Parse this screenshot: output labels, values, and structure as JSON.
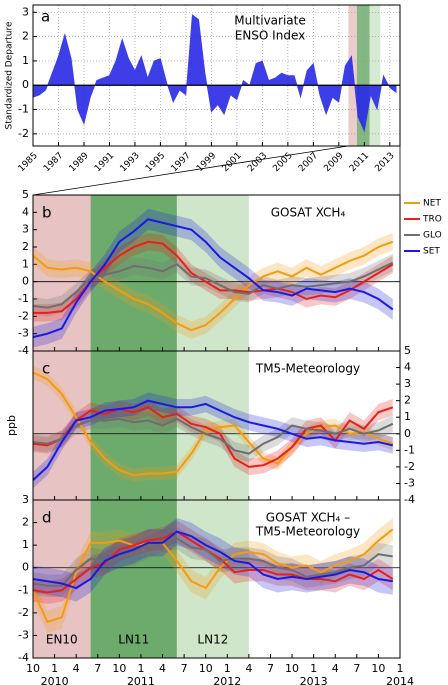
{
  "chart_data": [
    {
      "type": "area",
      "panel": "a",
      "title": [
        "Multivariate",
        "ENSO Index"
      ],
      "ylabel": "Standardized Departure",
      "x": [
        1985.0,
        1985.5,
        1986.0,
        1986.5,
        1987.0,
        1987.5,
        1988.0,
        1988.5,
        1989.0,
        1989.5,
        1990.0,
        1990.5,
        1991.0,
        1991.5,
        1992.0,
        1992.5,
        1993.0,
        1993.5,
        1994.0,
        1994.5,
        1995.0,
        1995.5,
        1996.0,
        1996.5,
        1997.0,
        1997.5,
        1998.0,
        1998.5,
        1999.0,
        1999.5,
        2000.0,
        2000.5,
        2001.0,
        2001.5,
        2002.0,
        2002.5,
        2003.0,
        2003.5,
        2004.0,
        2004.5,
        2005.0,
        2005.5,
        2006.0,
        2006.5,
        2007.0,
        2007.5,
        2008.0,
        2008.5,
        2009.0,
        2009.5,
        2010.0,
        2010.5,
        2011.0,
        2011.5,
        2012.0,
        2012.5,
        2013.0,
        2013.5
      ],
      "values": [
        -0.5,
        -0.4,
        -0.2,
        0.5,
        1.2,
        2.1,
        1.1,
        -1.0,
        -1.6,
        -0.5,
        0.2,
        0.3,
        0.4,
        1.0,
        1.9,
        1.1,
        0.6,
        1.2,
        0.3,
        1.0,
        1.1,
        0.1,
        -0.7,
        -0.2,
        -0.4,
        2.9,
        2.7,
        0.5,
        -1.1,
        -0.8,
        -1.2,
        -0.4,
        -0.6,
        0.2,
        0.0,
        0.9,
        1.0,
        0.2,
        0.3,
        0.5,
        0.4,
        0.4,
        -0.5,
        0.6,
        0.9,
        -0.4,
        -1.2,
        -0.5,
        -0.7,
        0.8,
        1.2,
        -1.3,
        -1.9,
        -0.4,
        -1.0,
        0.4,
        -0.1,
        -0.3
      ],
      "color": "#2a2ae6",
      "xlim": [
        1985,
        2013.8
      ],
      "ylim": [
        -2.5,
        3.3
      ],
      "xticks": [
        1985,
        1987,
        1989,
        1991,
        1993,
        1995,
        1997,
        1999,
        2001,
        2003,
        2005,
        2007,
        2009,
        2011,
        2013
      ],
      "yticks": [
        -2,
        -1,
        0,
        1,
        2,
        3
      ],
      "grid": true
    },
    {
      "type": "line",
      "panel": "b",
      "title": "GOSAT XCH₄",
      "legend": "right",
      "yaxis": "left",
      "x": [
        "2009-10",
        "2009-12",
        "2010-02",
        "2010-04",
        "2010-06",
        "2010-08",
        "2010-10",
        "2010-12",
        "2011-02",
        "2011-04",
        "2011-06",
        "2011-08",
        "2011-10",
        "2011-12",
        "2012-02",
        "2012-04",
        "2012-06",
        "2012-08",
        "2012-10",
        "2012-12",
        "2013-02",
        "2013-04",
        "2013-06",
        "2013-08",
        "2013-10",
        "2013-12"
      ],
      "xlim": [
        "2009-10",
        "2014-01"
      ],
      "ylim": [
        -4,
        5
      ],
      "yticks": [
        -4,
        -3,
        -2,
        -1,
        0,
        1,
        2,
        3,
        4,
        5
      ],
      "series": [
        {
          "name": "NET",
          "color": "#f39c12",
          "error": 0.5,
          "values": [
            1.5,
            0.8,
            0.7,
            0.8,
            0.6,
            0.0,
            -0.5,
            -1.0,
            -1.3,
            -1.8,
            -2.4,
            -2.8,
            -2.5,
            -1.8,
            -1.0,
            -0.2,
            0.3,
            0.6,
            0.3,
            0.8,
            0.4,
            0.8,
            1.2,
            1.5,
            2.0,
            2.3
          ]
        },
        {
          "name": "TRO",
          "color": "#e8201c",
          "error": 0.5,
          "values": [
            -1.8,
            -1.8,
            -1.7,
            -1.0,
            0.0,
            0.8,
            1.5,
            2.0,
            2.3,
            2.2,
            1.5,
            0.5,
            0.0,
            -0.5,
            -0.5,
            -0.6,
            -0.5,
            -0.4,
            -0.6,
            -1.0,
            -0.8,
            -0.9,
            -0.5,
            0.0,
            0.5,
            1.0
          ]
        },
        {
          "name": "GLO",
          "color": "#6e6e6e",
          "error": 0.5,
          "values": [
            -1.4,
            -1.5,
            -1.3,
            -0.6,
            0.2,
            0.4,
            0.6,
            0.9,
            0.8,
            0.6,
            1.0,
            0.3,
            0.2,
            -0.2,
            -0.6,
            -0.7,
            -0.2,
            -0.4,
            -0.2,
            -0.3,
            -0.2,
            -0.1,
            0.0,
            0.3,
            0.7,
            1.1
          ]
        },
        {
          "name": "SET",
          "color": "#1a1ae0",
          "error": 0.6,
          "values": [
            -3.2,
            -3.0,
            -2.7,
            -1.2,
            0.0,
            1.0,
            2.3,
            2.9,
            3.6,
            3.4,
            3.2,
            3.0,
            2.3,
            1.4,
            0.8,
            0.2,
            -0.5,
            -0.6,
            -0.8,
            -0.4,
            -0.5,
            -0.6,
            -0.4,
            -0.6,
            -1.0,
            -1.6
          ]
        }
      ]
    },
    {
      "type": "line",
      "panel": "c",
      "title": "TM5-Meteorology",
      "ylabel": "ppb",
      "yaxis": "right",
      "x": [
        "2009-10",
        "2009-12",
        "2010-02",
        "2010-04",
        "2010-06",
        "2010-08",
        "2010-10",
        "2010-12",
        "2011-02",
        "2011-04",
        "2011-06",
        "2011-08",
        "2011-10",
        "2011-12",
        "2012-02",
        "2012-04",
        "2012-06",
        "2012-08",
        "2012-10",
        "2012-12",
        "2013-02",
        "2013-04",
        "2013-06",
        "2013-08",
        "2013-10",
        "2013-12"
      ],
      "xlim": [
        "2009-10",
        "2014-01"
      ],
      "ylim": [
        -4,
        5
      ],
      "yticks": [
        -4,
        -3,
        -2,
        -1,
        0,
        1,
        2,
        3,
        4,
        5
      ],
      "series": [
        {
          "name": "NET",
          "color": "#f39c12",
          "error": 0.4,
          "values": [
            3.7,
            3.3,
            2.4,
            1.0,
            -0.5,
            -1.5,
            -2.2,
            -2.5,
            -2.4,
            -2.4,
            -2.3,
            -1.2,
            0.2,
            0.4,
            0.5,
            -0.5,
            -1.5,
            -1.8,
            -0.8,
            0.0,
            0.4,
            0.5,
            0.0,
            0.1,
            -0.3,
            -0.6
          ]
        },
        {
          "name": "TRO",
          "color": "#e8201c",
          "error": 0.5,
          "values": [
            -0.6,
            -0.7,
            -0.3,
            0.8,
            1.4,
            1.2,
            1.5,
            1.3,
            1.6,
            1.0,
            1.2,
            0.6,
            0.4,
            0.0,
            -1.5,
            -2.0,
            -1.9,
            -1.5,
            -0.8,
            0.3,
            0.5,
            -0.4,
            0.8,
            0.3,
            1.3,
            1.6
          ]
        },
        {
          "name": "GLO",
          "color": "#6e6e6e",
          "error": 0.5,
          "values": [
            -0.5,
            -0.6,
            -0.3,
            0.5,
            0.8,
            0.8,
            0.9,
            0.7,
            0.8,
            0.5,
            0.9,
            0.4,
            0.0,
            -0.3,
            -1.0,
            -1.2,
            -0.6,
            -0.2,
            0.5,
            0.3,
            0.2,
            0.0,
            0.3,
            0.0,
            0.2,
            0.6
          ]
        },
        {
          "name": "SET",
          "color": "#1a1ae0",
          "error": 0.5,
          "values": [
            -2.8,
            -2.0,
            -0.5,
            0.8,
            1.0,
            1.4,
            1.5,
            1.6,
            2.0,
            1.8,
            1.6,
            1.6,
            1.8,
            1.4,
            1.0,
            0.7,
            0.5,
            0.3,
            0.0,
            -0.3,
            -0.2,
            -0.4,
            -0.5,
            -0.6,
            -0.5,
            -0.7
          ]
        }
      ]
    },
    {
      "type": "line",
      "panel": "d",
      "title": [
        "GOSAT XCH₄ –",
        "TM5-Meteorology"
      ],
      "yaxis": "left",
      "x": [
        "2009-10",
        "2009-12",
        "2010-02",
        "2010-04",
        "2010-06",
        "2010-08",
        "2010-10",
        "2010-12",
        "2011-02",
        "2011-04",
        "2011-06",
        "2011-08",
        "2011-10",
        "2011-12",
        "2012-02",
        "2012-04",
        "2012-06",
        "2012-08",
        "2012-10",
        "2012-12",
        "2013-02",
        "2013-04",
        "2013-06",
        "2013-08",
        "2013-10",
        "2013-12"
      ],
      "xlim": [
        "2009-10",
        "2014-01"
      ],
      "ylim": [
        -4,
        3
      ],
      "yticks": [
        -4,
        -3,
        -2,
        -1,
        0,
        1,
        2,
        3
      ],
      "xticks": [
        {
          "value": "2009-10",
          "label": "10"
        },
        {
          "value": "2010-01",
          "label": "1"
        },
        {
          "value": "2010-04",
          "label": "4"
        },
        {
          "value": "2010-07",
          "label": "7"
        },
        {
          "value": "2010-10",
          "label": "10"
        },
        {
          "value": "2011-01",
          "label": "1"
        },
        {
          "value": "2011-04",
          "label": "4"
        },
        {
          "value": "2011-07",
          "label": "7"
        },
        {
          "value": "2011-10",
          "label": "10"
        },
        {
          "value": "2012-01",
          "label": "1"
        },
        {
          "value": "2012-04",
          "label": "4"
        },
        {
          "value": "2012-07",
          "label": "7"
        },
        {
          "value": "2012-10",
          "label": "10"
        },
        {
          "value": "2013-01",
          "label": "1"
        },
        {
          "value": "2013-04",
          "label": "4"
        },
        {
          "value": "2013-07",
          "label": "7"
        },
        {
          "value": "2013-10",
          "label": "10"
        },
        {
          "value": "2014-01",
          "label": "1"
        }
      ],
      "year_ticks": [
        {
          "value": "2010-01",
          "label": "2010"
        },
        {
          "value": "2011-01",
          "label": "2011"
        },
        {
          "value": "2012-01",
          "label": "2012"
        },
        {
          "value": "2013-01",
          "label": "2013"
        },
        {
          "value": "2014-01",
          "label": "2014"
        }
      ],
      "periods": [
        {
          "label": "EN10",
          "start": "2009-10",
          "end": "2010-06",
          "color": "#e7c3c3"
        },
        {
          "label": "LN11",
          "start": "2010-06",
          "end": "2011-06",
          "color": "#6dab6d"
        },
        {
          "label": "LN12",
          "start": "2011-06",
          "end": "2012-04",
          "color": "#cfe6cb"
        }
      ],
      "series": [
        {
          "name": "NET",
          "color": "#f39c12",
          "error": 0.5,
          "values": [
            -1.0,
            -2.4,
            -2.2,
            -0.2,
            1.1,
            1.1,
            1.2,
            1.0,
            1.1,
            1.1,
            0.3,
            -0.6,
            -0.9,
            0.0,
            0.6,
            0.7,
            0.6,
            0.2,
            0.0,
            0.1,
            -0.2,
            0.1,
            0.3,
            0.6,
            1.2,
            1.7
          ]
        },
        {
          "name": "TRO",
          "color": "#e8201c",
          "error": 0.5,
          "values": [
            -1.0,
            -1.1,
            -1.0,
            -0.5,
            0.0,
            0.2,
            0.8,
            1.0,
            1.2,
            1.3,
            1.6,
            1.2,
            0.8,
            0.4,
            -0.2,
            -0.1,
            -0.1,
            -0.3,
            -0.3,
            -0.5,
            -0.5,
            -0.6,
            -0.3,
            -0.5,
            -0.1,
            -0.5
          ]
        },
        {
          "name": "GLO",
          "color": "#6e6e6e",
          "error": 0.5,
          "values": [
            -0.7,
            -0.8,
            -0.8,
            -0.1,
            0.4,
            0.3,
            0.5,
            0.6,
            0.9,
            1.2,
            1.3,
            0.9,
            0.8,
            0.3,
            0.4,
            0.4,
            0.3,
            0.0,
            -0.1,
            -0.4,
            -0.3,
            -0.2,
            0.0,
            0.1,
            0.6,
            0.5
          ]
        },
        {
          "name": "SET",
          "color": "#1a1ae0",
          "error": 0.6,
          "values": [
            -0.5,
            -0.6,
            -0.7,
            -0.9,
            -0.5,
            0.3,
            0.6,
            0.8,
            1.1,
            1.1,
            1.6,
            1.4,
            1.0,
            0.7,
            0.3,
            0.2,
            -0.3,
            -0.5,
            -0.4,
            -0.5,
            -0.4,
            -0.3,
            -0.1,
            -0.2,
            -0.5,
            -0.6
          ]
        }
      ]
    }
  ]
}
